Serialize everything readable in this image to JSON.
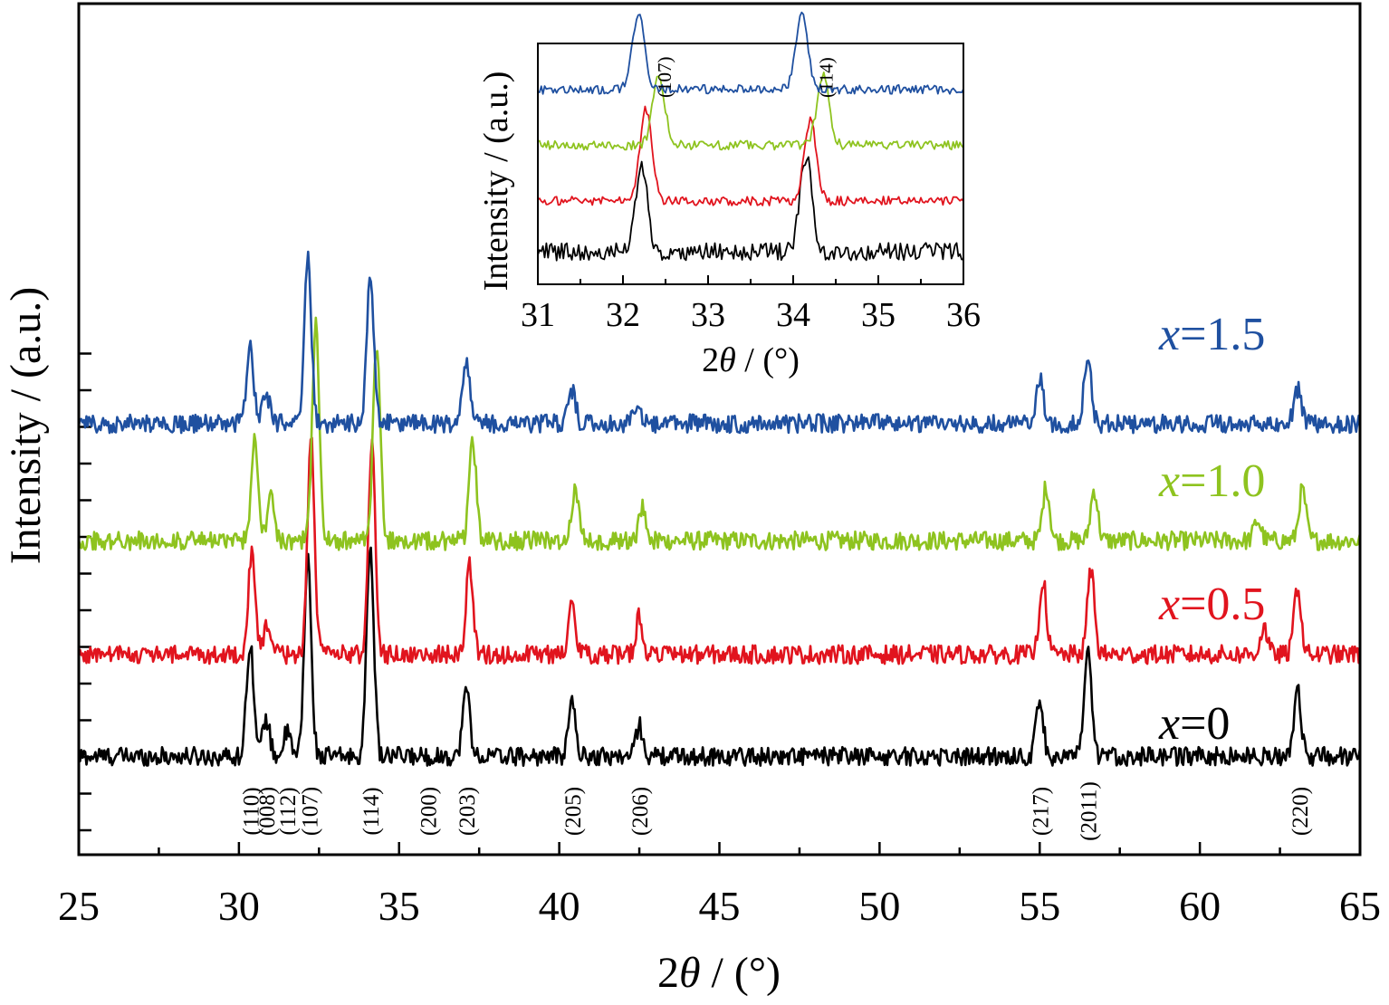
{
  "chart_data": [
    {
      "type": "line",
      "title": "",
      "xlabel_prefix": "2",
      "xlabel_symbol": "θ",
      "xlabel_suffix": " / (°)",
      "ylabel": "Intensity / (a.u.)",
      "xlim": [
        25,
        65
      ],
      "xticks": [
        "25",
        "30",
        "35",
        "40",
        "45",
        "50",
        "55",
        "60",
        "65"
      ],
      "legend": "series labels placed at right of each trace",
      "grid": false,
      "peaks": [
        {
          "label": "(110)",
          "x": 30.35
        },
        {
          "label": "(008)",
          "x": 30.85
        },
        {
          "label": "(112)",
          "x": 31.5
        },
        {
          "label": "(107)",
          "x": 32.2
        },
        {
          "label": "(114)",
          "x": 34.1
        },
        {
          "label": "(200)",
          "x": 35.9
        },
        {
          "label": "(203)",
          "x": 37.1
        },
        {
          "label": "(205)",
          "x": 40.4
        },
        {
          "label": "(206)",
          "x": 42.5
        },
        {
          "label": "(217)",
          "x": 55.0
        },
        {
          "label": "(2011)",
          "x": 56.5
        },
        {
          "label": "(220)",
          "x": 63.1
        }
      ],
      "series": [
        {
          "name_var": "x",
          "name_value": "=0",
          "color": "#000000",
          "baseline": 0.55,
          "shift": 0.0,
          "peaks": [
            [
              30.35,
              3.4
            ],
            [
              30.85,
              1.1
            ],
            [
              31.5,
              0.7
            ],
            [
              32.15,
              5.8
            ],
            [
              34.1,
              6.3
            ],
            [
              37.1,
              2.0
            ],
            [
              40.4,
              1.6
            ],
            [
              42.5,
              0.9
            ],
            [
              55.0,
              1.7
            ],
            [
              56.5,
              3.1
            ],
            [
              63.05,
              2.0
            ]
          ]
        },
        {
          "name_var": "x",
          "name_value": "=0.5",
          "color": "#e1141e",
          "baseline": 3.55,
          "shift": 0.05,
          "peaks": [
            [
              30.4,
              2.9
            ],
            [
              30.9,
              0.9
            ],
            [
              32.25,
              6.4
            ],
            [
              34.15,
              6.2
            ],
            [
              37.2,
              2.6
            ],
            [
              40.4,
              1.6
            ],
            [
              42.5,
              1.1
            ],
            [
              55.1,
              2.2
            ],
            [
              56.6,
              2.5
            ],
            [
              62.0,
              0.8
            ],
            [
              63.05,
              2.0
            ]
          ]
        },
        {
          "name_var": "x",
          "name_value": "=1.0",
          "color": "#8ec31f",
          "baseline": 6.9,
          "shift": 0.2,
          "peaks": [
            [
              30.5,
              3.0
            ],
            [
              31.0,
              1.4
            ],
            [
              32.4,
              6.3
            ],
            [
              34.3,
              5.8
            ],
            [
              37.3,
              2.9
            ],
            [
              40.5,
              1.5
            ],
            [
              42.6,
              1.0
            ],
            [
              55.2,
              1.6
            ],
            [
              56.7,
              1.5
            ],
            [
              61.8,
              0.6
            ],
            [
              63.2,
              1.5
            ]
          ]
        },
        {
          "name_var": "x",
          "name_value": "=1.5",
          "color": "#1f50a0",
          "baseline": 10.35,
          "shift": 0.0,
          "peaks": [
            [
              30.35,
              2.2
            ],
            [
              30.85,
              0.9
            ],
            [
              32.15,
              4.9
            ],
            [
              34.1,
              4.4
            ],
            [
              37.1,
              1.8
            ],
            [
              40.4,
              1.0
            ],
            [
              42.4,
              0.6
            ],
            [
              55.0,
              1.3
            ],
            [
              56.5,
              2.1
            ],
            [
              63.05,
              1.0
            ]
          ]
        }
      ]
    },
    {
      "type": "line",
      "title": "",
      "xlabel_prefix": "2",
      "xlabel_symbol": "θ",
      "xlabel_suffix": " / (°)",
      "ylabel": "Intensity / (a.u.)",
      "xlim": [
        31,
        36
      ],
      "xticks": [
        "31",
        "32",
        "33",
        "34",
        "35",
        "36"
      ],
      "grid": false,
      "peaks": [
        {
          "label": "(107)",
          "x": 32.5
        },
        {
          "label": "(114)",
          "x": 34.4
        }
      ],
      "series": [
        {
          "color": "#000000",
          "baseline": 0.5,
          "p1": [
            32.22,
            1.7
          ],
          "p2": [
            34.15,
            1.9
          ]
        },
        {
          "color": "#e1141e",
          "baseline": 1.5,
          "p1": [
            32.27,
            1.8
          ],
          "p2": [
            34.2,
            1.6
          ]
        },
        {
          "color": "#8ec31f",
          "baseline": 2.6,
          "p1": [
            32.42,
            1.4
          ],
          "p2": [
            34.35,
            1.4
          ]
        },
        {
          "color": "#1f50a0",
          "baseline": 3.7,
          "p1": [
            32.18,
            1.5
          ],
          "p2": [
            34.1,
            1.5
          ]
        }
      ]
    }
  ]
}
